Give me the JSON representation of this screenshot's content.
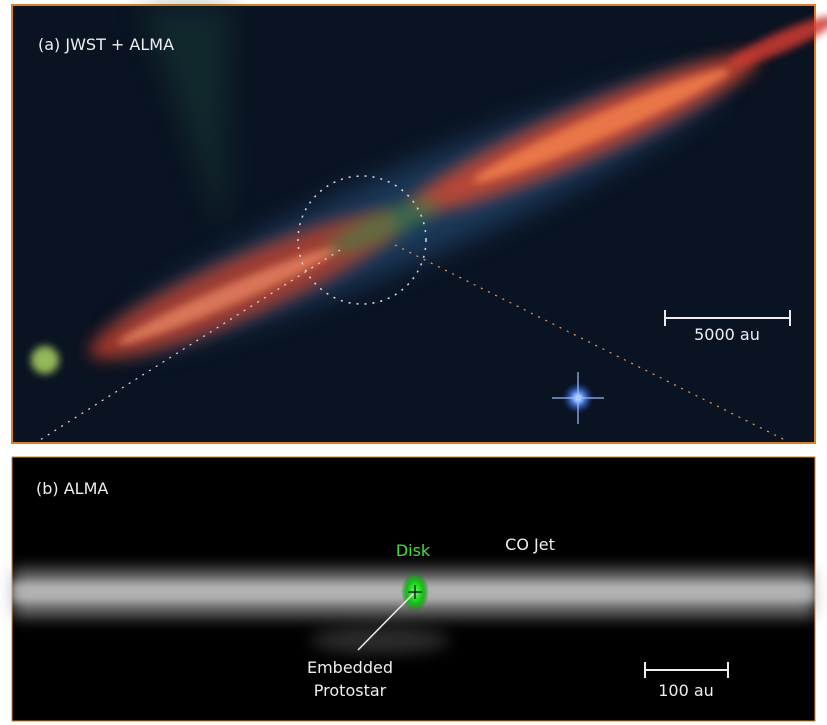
{
  "panel_a": {
    "label": "(a) JWST + ALMA",
    "scale_bar": "5000 au"
  },
  "panel_b": {
    "label": "(b) ALMA",
    "disk_label": "Disk",
    "jet_label": "CO Jet",
    "protostar_label": [
      "Embedded",
      "Protostar"
    ],
    "scale_bar": "100 au"
  }
}
